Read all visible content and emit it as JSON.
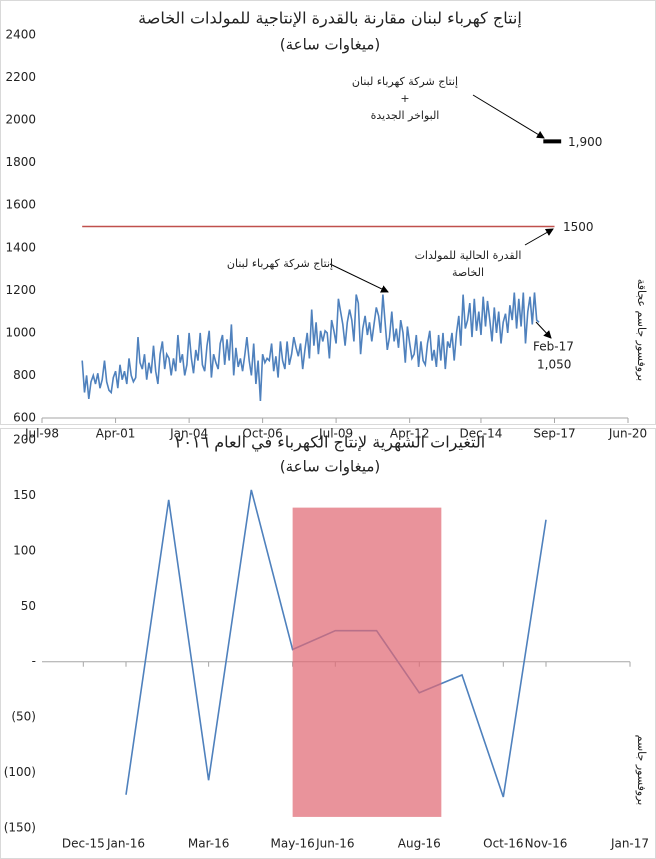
{
  "chart_data": [
    {
      "type": "line",
      "title": "إنتاج كهرباء لبنان مقارنة بالقدرة الإنتاجية للمولدات الخاصة",
      "subtitle": "(ميغاوات ساعة)",
      "x": [
        "2000-01",
        "2000-02",
        "2000-03",
        "2000-04",
        "2000-05",
        "2000-06",
        "2000-07",
        "2000-08",
        "2000-09",
        "2000-10",
        "2000-11",
        "2000-12",
        "2001-01",
        "2001-02",
        "2001-03",
        "2001-04",
        "2001-05",
        "2001-06",
        "2001-07",
        "2001-08",
        "2001-09",
        "2001-10",
        "2001-11",
        "2001-12",
        "2002-01",
        "2002-02",
        "2002-03",
        "2002-04",
        "2002-05",
        "2002-06",
        "2002-07",
        "2002-08",
        "2002-09",
        "2002-10",
        "2002-11",
        "2002-12",
        "2003-01",
        "2003-02",
        "2003-03",
        "2003-04",
        "2003-05",
        "2003-06",
        "2003-07",
        "2003-08",
        "2003-09",
        "2003-10",
        "2003-11",
        "2003-12",
        "2004-01",
        "2004-02",
        "2004-03",
        "2004-04",
        "2004-05",
        "2004-06",
        "2004-07",
        "2004-08",
        "2004-09",
        "2004-10",
        "2004-11",
        "2004-12",
        "2005-01",
        "2005-02",
        "2005-03",
        "2005-04",
        "2005-05",
        "2005-06",
        "2005-07",
        "2005-08",
        "2005-09",
        "2005-10",
        "2005-11",
        "2005-12",
        "2006-01",
        "2006-02",
        "2006-03",
        "2006-04",
        "2006-05",
        "2006-06",
        "2006-07",
        "2006-08",
        "2006-09",
        "2006-10",
        "2006-11",
        "2006-12",
        "2007-01",
        "2007-02",
        "2007-03",
        "2007-04",
        "2007-05",
        "2007-06",
        "2007-07",
        "2007-08",
        "2007-09",
        "2007-10",
        "2007-11",
        "2007-12",
        "2008-01",
        "2008-02",
        "2008-03",
        "2008-04",
        "2008-05",
        "2008-06",
        "2008-07",
        "2008-08",
        "2008-09",
        "2008-10",
        "2008-11",
        "2008-12",
        "2009-01",
        "2009-02",
        "2009-03",
        "2009-04",
        "2009-05",
        "2009-06",
        "2009-07",
        "2009-08",
        "2009-09",
        "2009-10",
        "2009-11",
        "2009-12",
        "2010-01",
        "2010-02",
        "2010-03",
        "2010-04",
        "2010-05",
        "2010-06",
        "2010-07",
        "2010-08",
        "2010-09",
        "2010-10",
        "2010-11",
        "2010-12",
        "2011-01",
        "2011-02",
        "2011-03",
        "2011-04",
        "2011-05",
        "2011-06",
        "2011-07",
        "2011-08",
        "2011-09",
        "2011-10",
        "2011-11",
        "2011-12",
        "2012-01",
        "2012-02",
        "2012-03",
        "2012-04",
        "2012-05",
        "2012-06",
        "2012-07",
        "2012-08",
        "2012-09",
        "2012-10",
        "2012-11",
        "2012-12",
        "2013-01",
        "2013-02",
        "2013-03",
        "2013-04",
        "2013-05",
        "2013-06",
        "2013-07",
        "2013-08",
        "2013-09",
        "2013-10",
        "2013-11",
        "2013-12",
        "2014-01",
        "2014-02",
        "2014-03",
        "2014-04",
        "2014-05",
        "2014-06",
        "2014-07",
        "2014-08",
        "2014-09",
        "2014-10",
        "2014-11",
        "2014-12",
        "2015-01",
        "2015-02",
        "2015-03",
        "2015-04",
        "2015-05",
        "2015-06",
        "2015-07",
        "2015-08",
        "2015-09",
        "2015-10",
        "2015-11",
        "2015-12",
        "2016-01",
        "2016-02",
        "2016-03",
        "2016-04",
        "2016-05",
        "2016-06",
        "2016-07",
        "2016-08",
        "2016-09",
        "2016-10",
        "2016-11",
        "2016-12",
        "2017-01",
        "2017-02"
      ],
      "series": [
        {
          "color": "#4f81bd",
          "values": [
            870,
            720,
            800,
            690,
            770,
            800,
            760,
            810,
            740,
            780,
            870,
            770,
            730,
            720,
            790,
            820,
            740,
            850,
            780,
            820,
            760,
            880,
            800,
            770,
            790,
            980,
            860,
            830,
            900,
            780,
            860,
            810,
            940,
            820,
            760,
            900,
            960,
            830,
            900,
            880,
            800,
            880,
            820,
            990,
            860,
            900,
            800,
            850,
            1000,
            880,
            810,
            920,
            870,
            1000,
            850,
            820,
            940,
            1010,
            790,
            900,
            860,
            830,
            950,
            990,
            850,
            970,
            870,
            1040,
            800,
            930,
            840,
            880,
            820,
            900,
            980,
            870,
            800,
            950,
            760,
            870,
            680,
            900,
            860,
            880,
            870,
            950,
            820,
            890,
            790,
            960,
            870,
            830,
            960,
            850,
            900,
            980,
            930,
            890,
            950,
            830,
            920,
            1000,
            880,
            1110,
            940,
            1050,
            900,
            1010,
            960,
            1010,
            1000,
            880,
            1060,
            1010,
            950,
            1160,
            1100,
            1040,
            940,
            1050,
            1110,
            1060,
            960,
            1180,
            1140,
            900,
            1020,
            1080,
            990,
            1050,
            960,
            1040,
            1120,
            1080,
            1000,
            1180,
            1050,
            920,
            980,
            1100,
            960,
            1020,
            930,
            1060,
            1000,
            860,
            1030,
            950,
            880,
            900,
            990,
            840,
            960,
            870,
            850,
            950,
            1010,
            870,
            920,
            840,
            990,
            870,
            1000,
            830,
            960,
            930,
            1000,
            870,
            1000,
            1080,
            940,
            1180,
            1020,
            1060,
            1140,
            980,
            1160,
            1010,
            1100,
            990,
            1170,
            1030,
            1150,
            1060,
            960,
            1120,
            1000,
            1100,
            950,
            1050,
            1090,
            1000,
            1130,
            1060,
            1190,
            1020,
            1160,
            1030,
            1190,
            950,
            1100,
            1170,
            1040,
            1190,
            1060,
            1050
          ]
        }
      ],
      "xlim": [
        "1998-07",
        "2020-06"
      ],
      "xticks": [
        {
          "value": "1998-07",
          "label": "Jul-98"
        },
        {
          "value": "2001-04",
          "label": "Apr-01"
        },
        {
          "value": "2004-01",
          "label": "Jan-04"
        },
        {
          "value": "2006-10",
          "label": "Oct-06"
        },
        {
          "value": "2009-07",
          "label": "Jul-09"
        },
        {
          "value": "2012-04",
          "label": "Apr-12"
        },
        {
          "value": "2014-12",
          "label": "Dec-14"
        },
        {
          "value": "2017-09",
          "label": "Sep-17"
        },
        {
          "value": "2020-06",
          "label": "Jun-20"
        }
      ],
      "ylim": [
        600,
        2400
      ],
      "yticks": [
        600,
        800,
        1000,
        1200,
        1400,
        1600,
        1800,
        2000,
        2200,
        2400
      ],
      "reference_line": {
        "value": 1500,
        "x": [
          "2000-01",
          "2017-09"
        ],
        "color": "#c0504d"
      },
      "target": {
        "value": 1900,
        "label": "1,900",
        "x": [
          "2017-04",
          "2017-12"
        ],
        "color": "#000000"
      },
      "end_label": {
        "x_label": "Feb-17",
        "value_label": "1,050"
      },
      "annotations": [
        {
          "lines": [
            "إنتاج شركة كهرباء لبنان",
            "+",
            "البواخر الجديدة"
          ]
        },
        {
          "lines": [
            "القدرة الحالية للمولدات",
            "الخاصة"
          ]
        },
        {
          "lines": [
            "إنتاج شركة كهرباء لبنان"
          ]
        }
      ],
      "credit": "بروفسور جاسم عجاقة"
    },
    {
      "type": "line",
      "title": "التغيرات الشهرية لإنتاج الكهرباء في العام ٢٠١٦",
      "subtitle": "(ميغاوات ساعة)",
      "x": [
        "2016-01",
        "2016-02",
        "2016-03",
        "2016-04",
        "2016-05",
        "2016-06",
        "2016-07",
        "2016-08",
        "2016-09",
        "2016-10",
        "2016-11"
      ],
      "series": [
        {
          "color": "#4f81bd",
          "values": [
            -120,
            146,
            -107,
            155,
            11,
            28,
            28,
            -28,
            -12,
            -122,
            128
          ]
        }
      ],
      "xlim": [
        "2015-11",
        "2017-01"
      ],
      "xticks": [
        {
          "value": "2015-12",
          "label": "Dec-15"
        },
        {
          "value": "2016-01",
          "label": "Jan-16"
        },
        {
          "value": "2016-03",
          "label": "Mar-16"
        },
        {
          "value": "2016-05",
          "label": "May-16"
        },
        {
          "value": "2016-06",
          "label": "Jun-16"
        },
        {
          "value": "2016-08",
          "label": "Aug-16"
        },
        {
          "value": "2016-10",
          "label": "Oct-16"
        },
        {
          "value": "2016-11",
          "label": "Nov-16"
        },
        {
          "value": "2017-01",
          "label": "Jan-17"
        }
      ],
      "ylim": [
        -150,
        200
      ],
      "yticks": [
        200,
        150,
        100,
        50,
        {
          "value": 0,
          "label": "-"
        },
        {
          "value": -50,
          "label": "(50)"
        },
        {
          "value": -100,
          "label": "(100)"
        },
        {
          "value": -150,
          "label": "(150)"
        }
      ],
      "highlight": {
        "x": [
          "2016-05",
          "2016-08-17"
        ],
        "y": [
          -140,
          139
        ],
        "color": "#e06a74"
      },
      "credit": "بروفسور جاسم"
    }
  ]
}
